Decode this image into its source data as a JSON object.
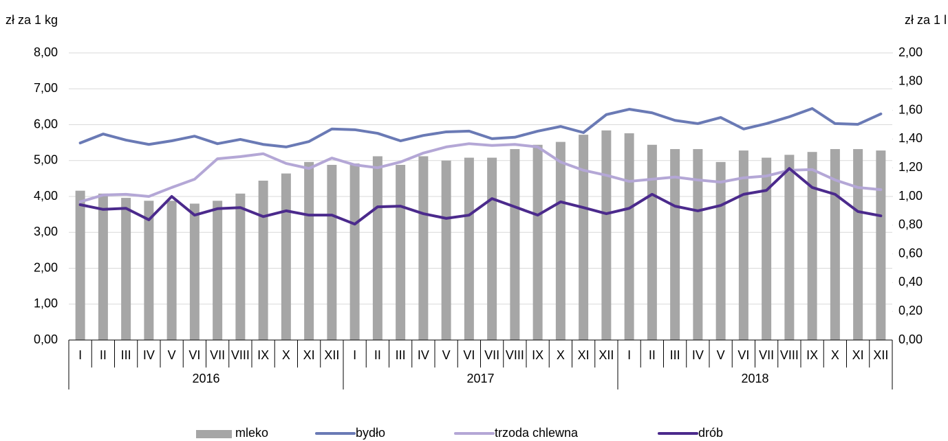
{
  "chart_data": {
    "type": "combo",
    "y_label": "zł za 1 kg",
    "y2_label": "zł za 1 l",
    "categories": [
      "I",
      "II",
      "III",
      "IV",
      "V",
      "VI",
      "VII",
      "VIII",
      "IX",
      "X",
      "XI",
      "XII",
      "I",
      "II",
      "III",
      "IV",
      "V",
      "VI",
      "VII",
      "VIII",
      "IX",
      "X",
      "XI",
      "XII",
      "I",
      "II",
      "III",
      "IV",
      "V",
      "VI",
      "VII",
      "VIII",
      "IX",
      "X",
      "XI",
      "XII"
    ],
    "category_groups": [
      "2016",
      "2017",
      "2018"
    ],
    "ylim": [
      0,
      8
    ],
    "yticks": [
      {
        "value": 0,
        "label": "0,00"
      },
      {
        "value": 1,
        "label": "1,00"
      },
      {
        "value": 2,
        "label": "2,00"
      },
      {
        "value": 3,
        "label": "3,00"
      },
      {
        "value": 4,
        "label": "4,00"
      },
      {
        "value": 5,
        "label": "5,00"
      },
      {
        "value": 6,
        "label": "6,00"
      },
      {
        "value": 7,
        "label": "7,00"
      },
      {
        "value": 8,
        "label": "8,00"
      }
    ],
    "y2lim": [
      0,
      2
    ],
    "y2ticks": [
      {
        "value": 0,
        "label": "0,00"
      },
      {
        "value": 0.2,
        "label": "0,20"
      },
      {
        "value": 0.4,
        "label": "0,40"
      },
      {
        "value": 0.6,
        "label": "0,60"
      },
      {
        "value": 0.8,
        "label": "0,80"
      },
      {
        "value": 1,
        "label": "1,00"
      },
      {
        "value": 1.2,
        "label": "1,20"
      },
      {
        "value": 1.4,
        "label": "1,40"
      },
      {
        "value": 1.6,
        "label": "1,60"
      },
      {
        "value": 1.8,
        "label": "1,80"
      },
      {
        "value": 2,
        "label": "2,00"
      }
    ],
    "grid": true,
    "series": [
      {
        "name": "mleko",
        "type": "bar",
        "axis": "y2",
        "color": "#a6a6a6",
        "values": [
          1.04,
          1.02,
          0.99,
          0.97,
          0.97,
          0.95,
          0.97,
          1.02,
          1.11,
          1.16,
          1.24,
          1.22,
          1.23,
          1.28,
          1.22,
          1.28,
          1.25,
          1.27,
          1.27,
          1.33,
          1.36,
          1.38,
          1.43,
          1.46,
          1.44,
          1.36,
          1.33,
          1.33,
          1.24,
          1.32,
          1.27,
          1.29,
          1.31,
          1.33,
          1.33,
          1.32
        ]
      },
      {
        "name": "bydło",
        "type": "line",
        "color": "#6a7ab5",
        "values": [
          5.49,
          5.74,
          5.57,
          5.45,
          5.55,
          5.68,
          5.47,
          5.59,
          5.45,
          5.38,
          5.53,
          5.88,
          5.86,
          5.76,
          5.55,
          5.7,
          5.8,
          5.82,
          5.61,
          5.65,
          5.82,
          5.95,
          5.78,
          6.28,
          6.43,
          6.33,
          6.12,
          6.03,
          6.2,
          5.88,
          6.03,
          6.22,
          6.45,
          6.03,
          6.01,
          6.3
        ]
      },
      {
        "name": "trzoda chlewna",
        "type": "line",
        "color": "#b4a7d6",
        "values": [
          3.85,
          4.04,
          4.06,
          4.0,
          4.25,
          4.48,
          5.05,
          5.11,
          5.19,
          4.92,
          4.78,
          5.07,
          4.88,
          4.8,
          4.96,
          5.21,
          5.38,
          5.47,
          5.42,
          5.45,
          5.38,
          4.96,
          4.73,
          4.59,
          4.42,
          4.48,
          4.54,
          4.46,
          4.4,
          4.52,
          4.57,
          4.73,
          4.75,
          4.46,
          4.25,
          4.19
        ]
      },
      {
        "name": "drób",
        "type": "line",
        "color": "#4b2a8c",
        "values": [
          3.77,
          3.64,
          3.67,
          3.35,
          4.0,
          3.48,
          3.66,
          3.69,
          3.44,
          3.6,
          3.48,
          3.48,
          3.23,
          3.71,
          3.73,
          3.52,
          3.39,
          3.48,
          3.94,
          3.71,
          3.48,
          3.85,
          3.69,
          3.52,
          3.67,
          4.06,
          3.73,
          3.6,
          3.75,
          4.06,
          4.17,
          4.78,
          4.25,
          4.06,
          3.58,
          3.46
        ]
      }
    ]
  }
}
